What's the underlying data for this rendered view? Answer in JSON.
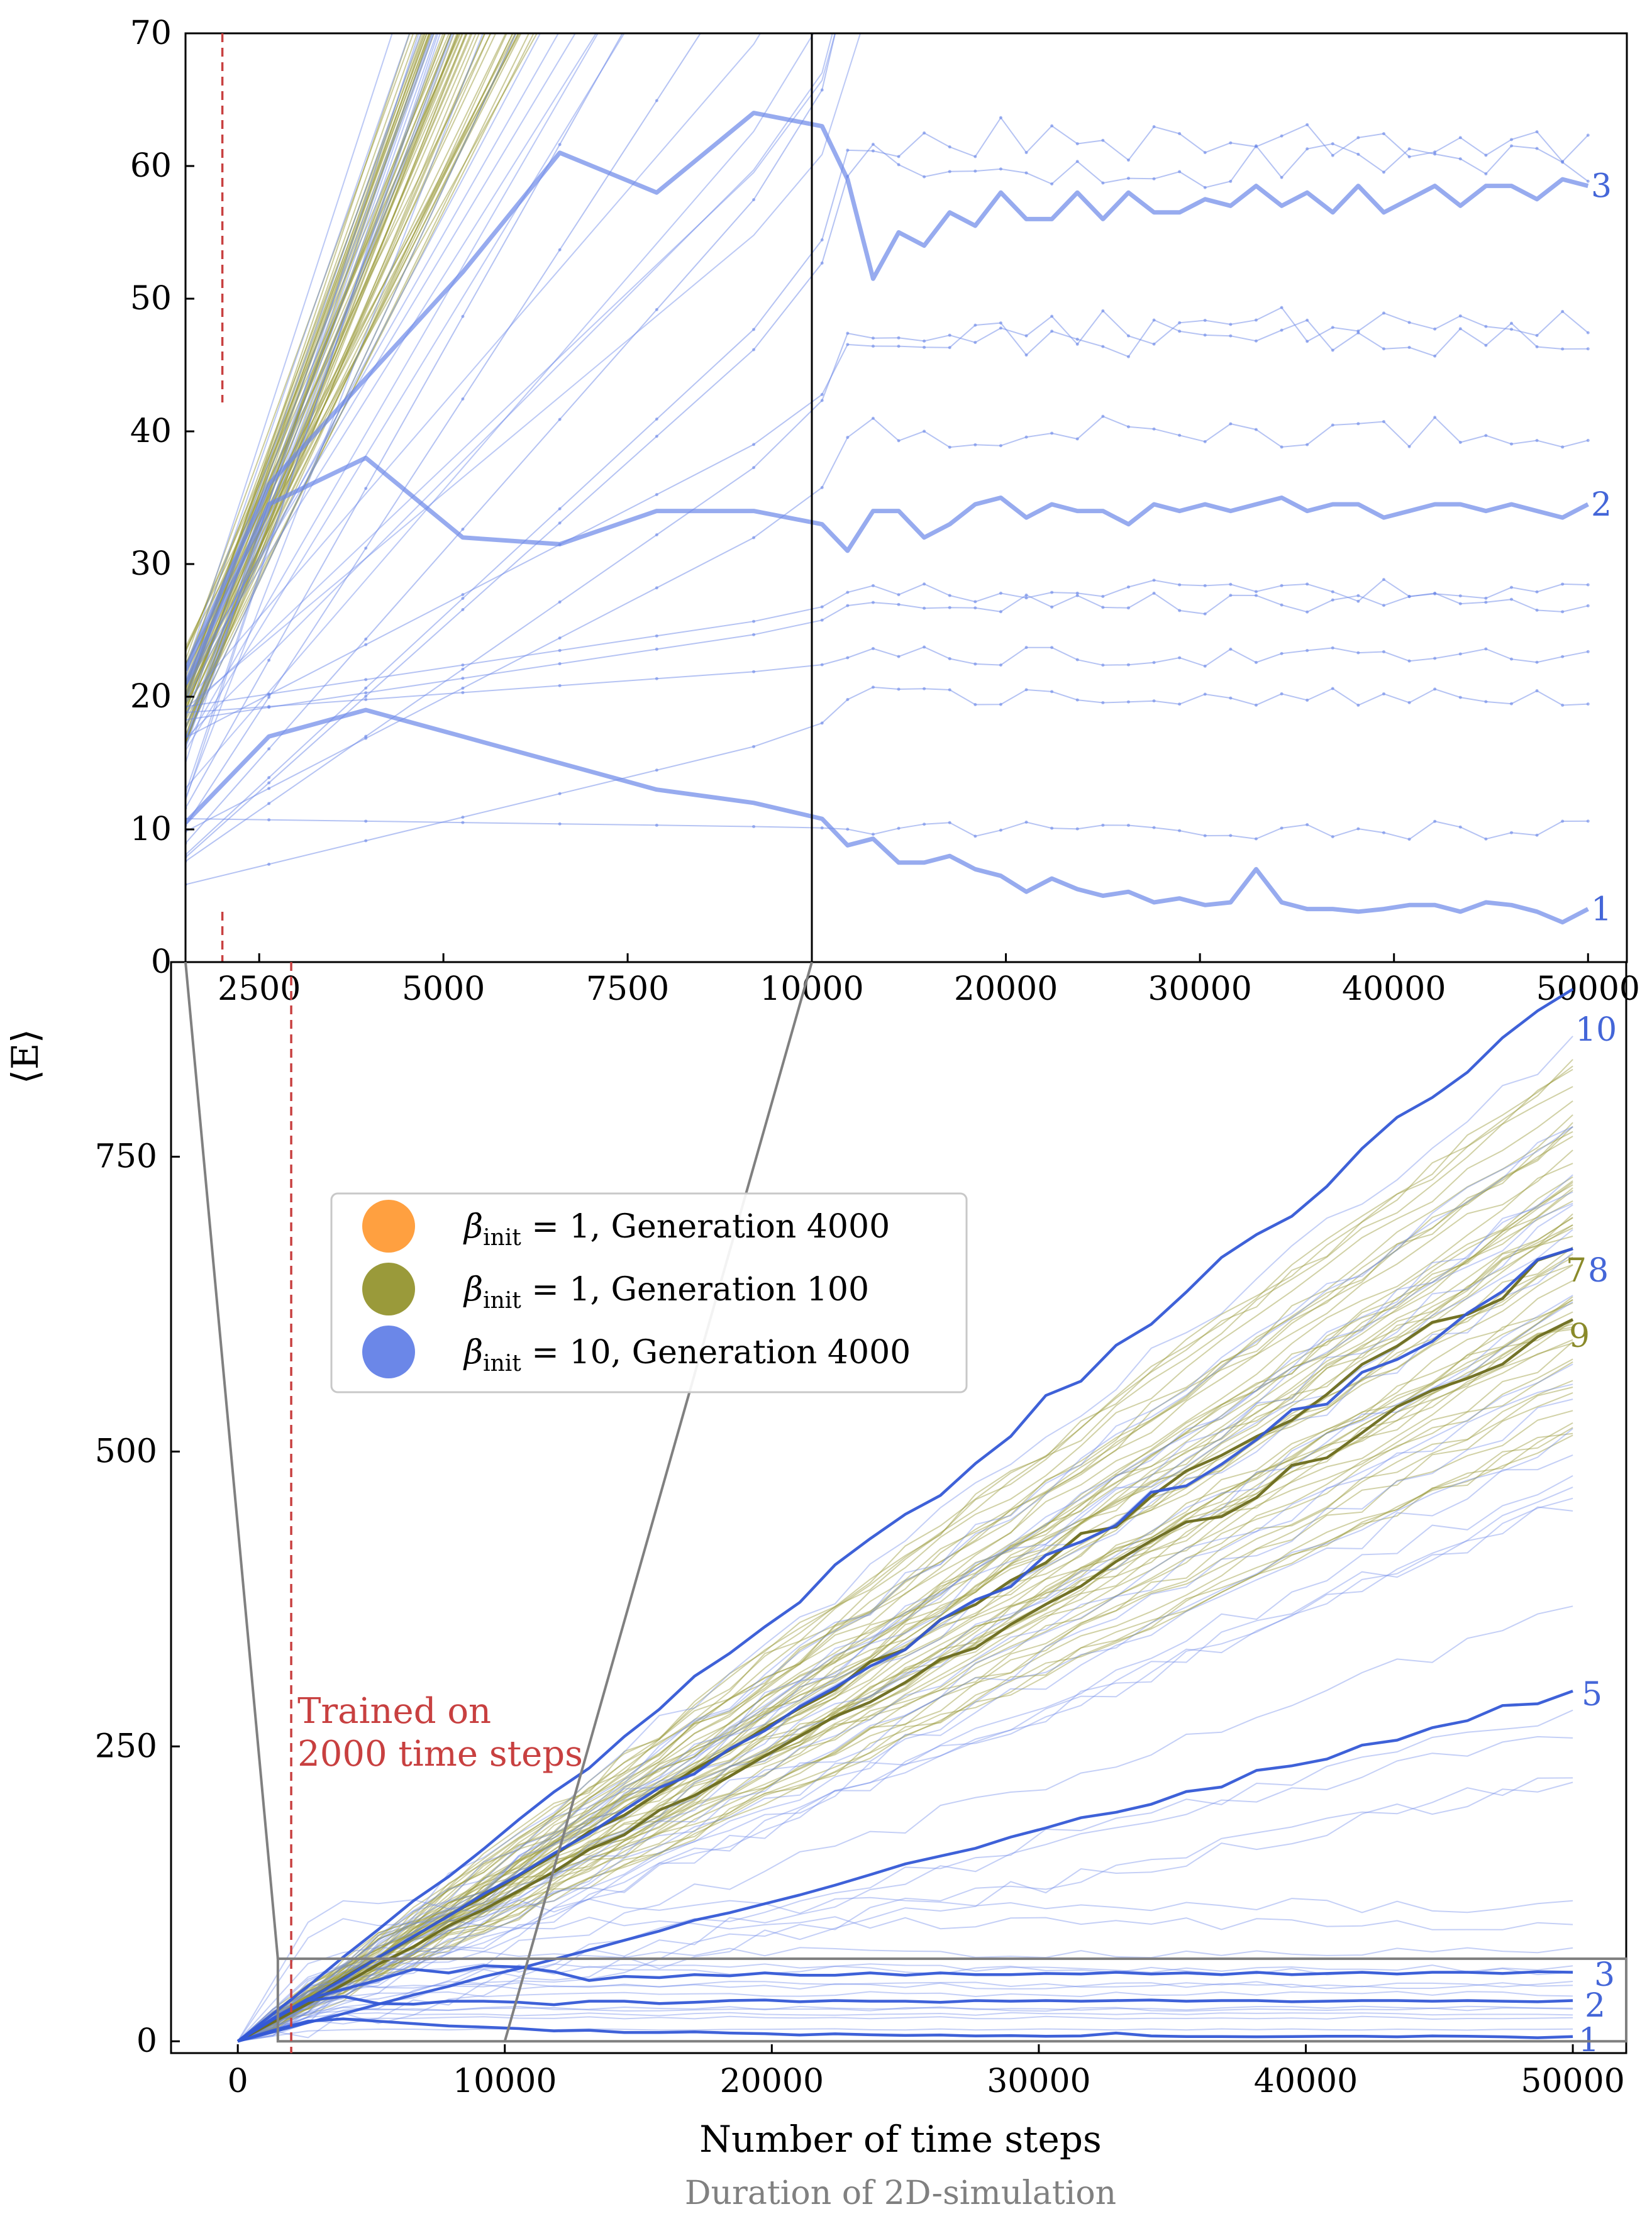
{
  "chart_data": [
    {
      "id": "main",
      "type": "line",
      "xlabel": "Number of time steps",
      "xlabel_sub": "Duration of 2D-simulation",
      "ylabel": "⟨E⟩",
      "xlim": [
        -2500,
        52000
      ],
      "ylim": [
        -10,
        915
      ],
      "xticks": [
        0,
        10000,
        20000,
        30000,
        40000,
        50000
      ],
      "yticks": [
        0,
        250,
        500,
        750
      ],
      "x": [
        0,
        1316,
        2632,
        3947,
        5263,
        6579,
        7895,
        9211,
        10526,
        11842,
        13158,
        14474,
        15789,
        17105,
        18421,
        19737,
        21053,
        22368,
        23684,
        25000,
        26316,
        27632,
        28947,
        30263,
        31579,
        32895,
        34211,
        35526,
        36842,
        38158,
        39474,
        40789,
        42105,
        43421,
        44737,
        46053,
        47368,
        48684,
        50000
      ],
      "training_marker": {
        "x": 2000,
        "label_line1": "Trained on",
        "label_line2": "2000 time steps"
      },
      "inset_box": {
        "x": [
          1500,
          52000
        ],
        "y": [
          0,
          70
        ]
      },
      "legend": [
        {
          "label_sym": "β",
          "label_sub": "init",
          "label_rest": " = 1, Generation 4000",
          "color": "#ffa040"
        },
        {
          "label_sym": "β",
          "label_sub": "init",
          "label_rest": " = 1, Generation 100",
          "color": "#9a9a3a"
        },
        {
          "label_sym": "β",
          "label_sub": "init",
          "label_rest": " = 10, Generation 4000",
          "color": "#6b87e8"
        }
      ],
      "highlighted_series": [
        {
          "name": "10",
          "group": "beta10",
          "end": 892,
          "growth": "linear"
        },
        {
          "name": "7",
          "group": "beta1_g100",
          "end": 672,
          "growth": "linear"
        },
        {
          "name": "8",
          "group": "beta10",
          "end": 672,
          "growth": "linear"
        },
        {
          "name": "9",
          "group": "beta1_g100",
          "end": 612,
          "growth": "linear"
        },
        {
          "name": "5",
          "group": "beta10",
          "end": 297,
          "growth": "linear"
        },
        {
          "name": "3",
          "group": "beta10",
          "plateau": 58
        },
        {
          "name": "2",
          "group": "beta10",
          "plateau": 34
        },
        {
          "name": "1",
          "group": "beta10",
          "plateau": 4
        }
      ],
      "background_series_approx": {
        "beta1_g100_count": 55,
        "beta1_g100_end_range": [
          505,
          830
        ],
        "beta10_linear_count": 25,
        "beta10_end_range": [
          220,
          870
        ],
        "beta10_plateau_levels": [
          10,
          20,
          23,
          27,
          28,
          40,
          47,
          48,
          60,
          62,
          75,
          100,
          115
        ]
      },
      "colors": {
        "beta10_line": "#6b87e8",
        "beta10_highlight": "#3459d6",
        "beta1_g100_line": "#9a9a3a",
        "beta1_g100_highlight": "#6b6b1c",
        "training_line": "#c84040",
        "zoom_box": "#808080"
      }
    },
    {
      "id": "inset",
      "type": "line",
      "xlim": [
        1500,
        52000
      ],
      "ylim": [
        0,
        70
      ],
      "x_scale": "broken: 1500–10000 linear, then 10000–52000 compressed",
      "xticks_left": [
        2500,
        5000,
        7500,
        10000
      ],
      "xticks_right": [
        20000,
        30000,
        40000,
        50000
      ],
      "yticks": [
        0,
        10,
        20,
        30,
        40,
        50,
        60,
        70
      ],
      "training_marker_x": 2000,
      "highlighted_plateau_series": [
        {
          "name": "3",
          "x": [
            1500,
            2632,
            3947,
            5263,
            6579,
            7895,
            9211,
            10526,
            11842,
            13158,
            14474,
            15789,
            17105,
            18421,
            19737,
            21053,
            22368,
            23684,
            25000,
            26316,
            27632,
            28947,
            30263,
            31579,
            32895,
            34211,
            35526,
            36842,
            38158,
            39474,
            40789,
            42105,
            43421,
            44737,
            46053,
            47368,
            48684,
            50000
          ],
          "y": [
            22,
            36,
            44,
            52,
            61,
            58,
            64,
            63,
            59,
            51.5,
            55,
            54,
            56.5,
            55.5,
            58,
            56,
            56,
            58,
            56,
            58,
            56.5,
            56.5,
            57.5,
            57,
            58.5,
            57,
            58,
            56.5,
            58.5,
            56.5,
            57.5,
            58.5,
            57,
            58.5,
            58.5,
            57.5,
            59,
            58.5
          ]
        },
        {
          "name": "2",
          "x": [
            1500,
            2632,
            3947,
            5263,
            6579,
            7895,
            9211,
            10526,
            11842,
            13158,
            14474,
            15789,
            17105,
            18421,
            19737,
            21053,
            22368,
            23684,
            25000,
            26316,
            27632,
            28947,
            30263,
            31579,
            32895,
            34211,
            35526,
            36842,
            38158,
            39474,
            40789,
            42105,
            43421,
            44737,
            46053,
            47368,
            48684,
            50000
          ],
          "y": [
            21,
            34.5,
            38,
            32,
            31.5,
            34,
            34,
            33,
            31,
            34,
            34,
            32,
            33,
            34.5,
            35,
            33.5,
            34.5,
            34,
            34,
            33,
            34.5,
            34,
            34.5,
            34,
            34.5,
            35,
            34,
            34.5,
            34.5,
            33.5,
            34,
            34.5,
            34.5,
            34,
            34.5,
            34,
            33.5,
            34.5
          ]
        },
        {
          "name": "1",
          "x": [
            1500,
            2632,
            3947,
            5263,
            6579,
            7895,
            9211,
            10526,
            11842,
            13158,
            14474,
            15789,
            17105,
            18421,
            19737,
            21053,
            22368,
            23684,
            25000,
            26316,
            27632,
            28947,
            30263,
            31579,
            32895,
            34211,
            35526,
            36842,
            38158,
            39474,
            40789,
            42105,
            43421,
            44737,
            46053,
            47368,
            48684,
            50000
          ],
          "y": [
            10.5,
            17,
            19,
            17,
            15,
            13,
            12,
            10.8,
            8.8,
            9.3,
            7.5,
            7.5,
            8,
            7,
            6.5,
            5.3,
            6.3,
            5.5,
            5,
            5.3,
            4.5,
            4.8,
            4.3,
            4.5,
            7,
            4.5,
            4,
            4,
            3.8,
            4,
            4.3,
            4.3,
            3.8,
            4.5,
            4.3,
            3.8,
            3,
            4
          ]
        }
      ]
    }
  ]
}
